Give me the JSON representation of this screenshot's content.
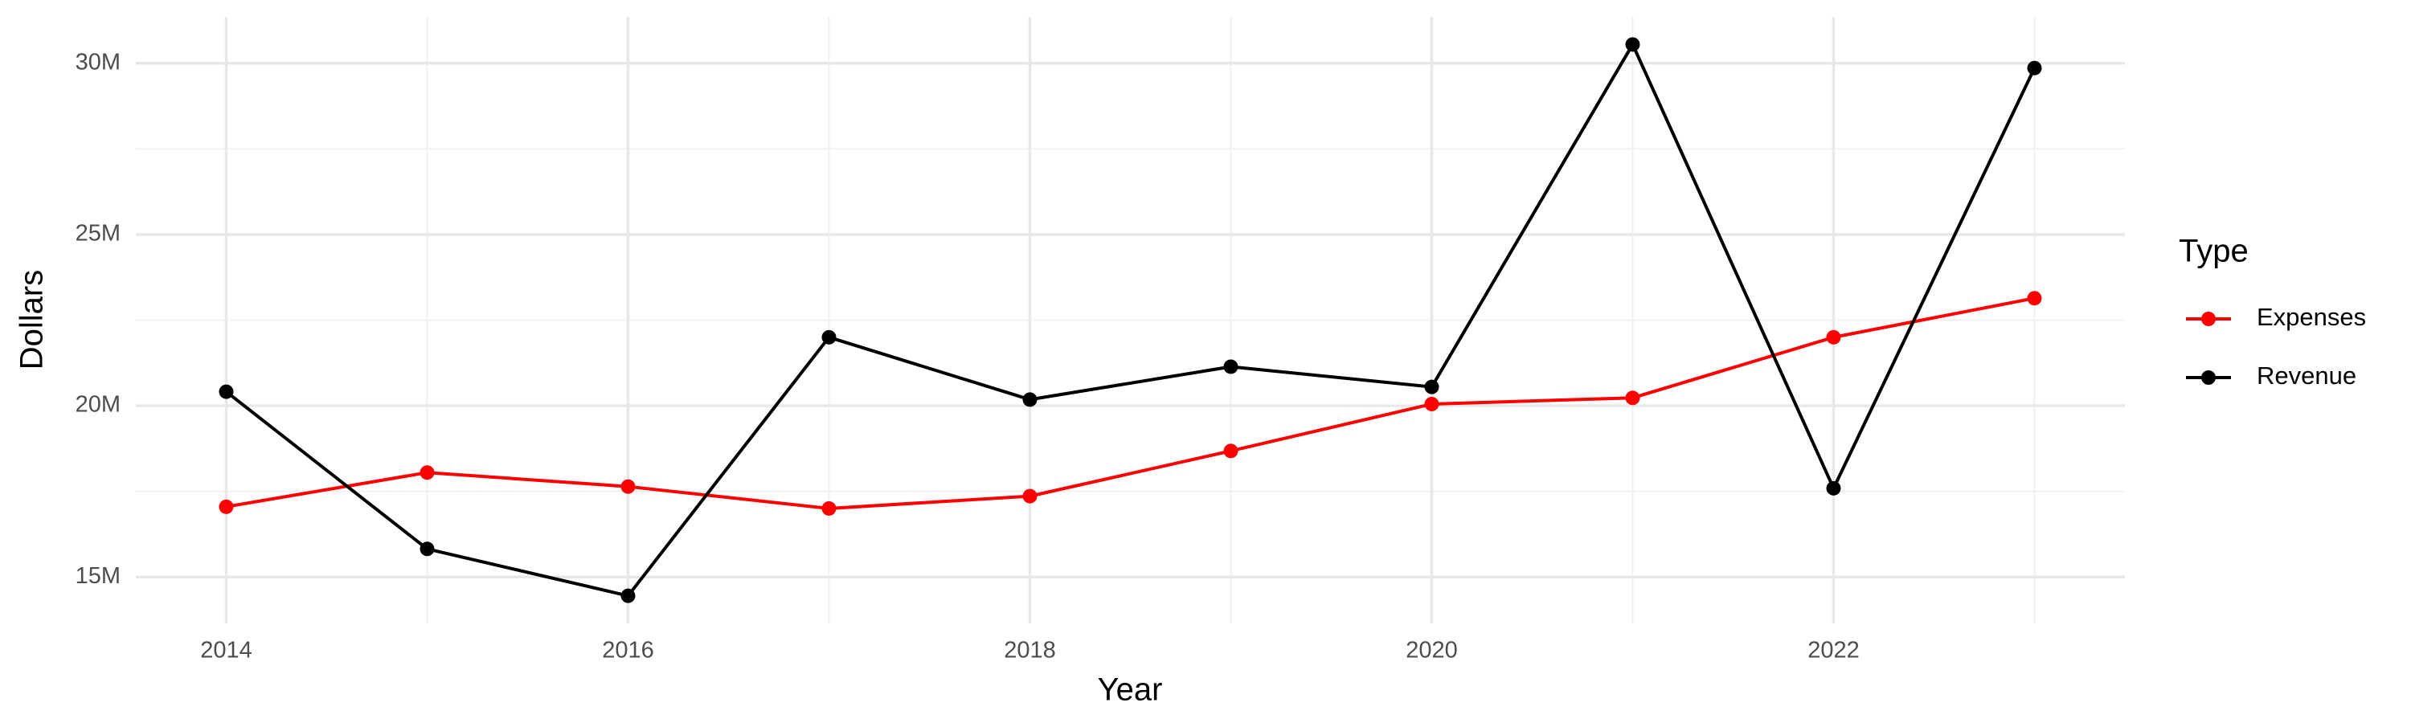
{
  "chart_data": {
    "type": "line",
    "x_label": "Year",
    "y_label": "Dollars",
    "legend_title": "Type",
    "legend_position": "right",
    "grid": true,
    "x": [
      2014,
      2015,
      2016,
      2017,
      2018,
      2019,
      2020,
      2021,
      2022,
      2023
    ],
    "series": [
      {
        "name": "Expenses",
        "color": "#ff0000",
        "values": [
          17050000,
          18050000,
          17640000,
          17000000,
          17360000,
          18680000,
          20050000,
          20230000,
          22000000,
          23140000
        ]
      },
      {
        "name": "Revenue",
        "color": "#000000",
        "values": [
          20410000,
          15820000,
          14450000,
          22000000,
          20180000,
          21140000,
          20550000,
          30550000,
          17590000,
          29860000
        ]
      }
    ],
    "xlim": [
      2013.55,
      2023.45
    ],
    "xticks": [
      2014,
      2016,
      2018,
      2020,
      2022
    ],
    "ylim": [
      13645000,
      31355000
    ],
    "yticks": [
      {
        "value": 15000000,
        "label": "15M"
      },
      {
        "value": 20000000,
        "label": "20M"
      },
      {
        "value": 25000000,
        "label": "25M"
      },
      {
        "value": 30000000,
        "label": "30M"
      }
    ]
  }
}
